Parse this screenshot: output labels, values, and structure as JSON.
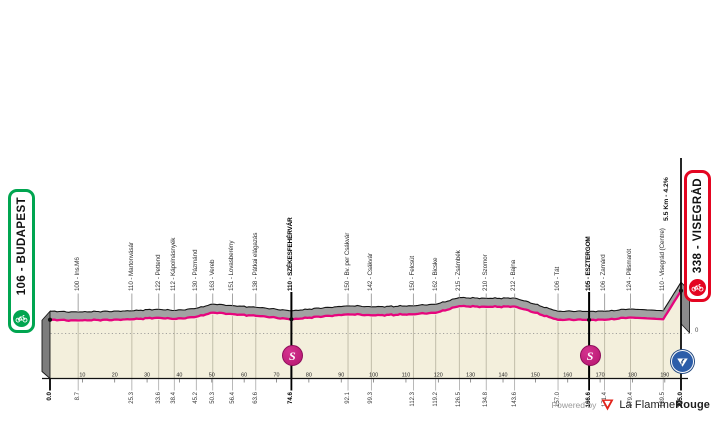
{
  "start_badge": {
    "label": "106 - BUDAPEST"
  },
  "finish_badge": {
    "label": "338 - VISEGRÁD"
  },
  "climb_annotation": "5.5 Km - 4.2%",
  "axis": {
    "zero_label": "0",
    "tick_labels": [
      "10",
      "20",
      "30",
      "40",
      "50",
      "60",
      "70",
      "80",
      "90",
      "100",
      "110",
      "120",
      "130",
      "140",
      "150",
      "160",
      "170",
      "180",
      "190"
    ]
  },
  "markers": {
    "sprint_symbol": "S"
  },
  "footer": {
    "powered_by": "Powered by",
    "brand_regular": "La Flamme",
    "brand_bold": "Rouge"
  },
  "colors": {
    "route_pink": "#e6057d",
    "start_green": "#00a550",
    "finish_red": "#e40521",
    "sprint_magenta": "#b5156f",
    "finish_marker_blue": "#2c5da9",
    "profile_gray": "#a2a2a2",
    "wall_gray": "#7d7d7d",
    "plot_beige": "#f3efdc",
    "grid_tan": "#bcb8a4"
  },
  "chart_data": {
    "type": "area",
    "title": "",
    "x_unit": "km",
    "y_unit": "m",
    "x_range": [
      0,
      195
    ],
    "y_range": [
      0,
      338
    ],
    "sprints_km": [
      74.6,
      166.6
    ],
    "finish_km": 195.0,
    "waypoints": [
      {
        "km": 0.0,
        "dist": "0.0",
        "elev": 106,
        "label": "",
        "bold": true,
        "type": "start"
      },
      {
        "km": 8.7,
        "dist": "8.7",
        "elev": 100,
        "label": "100 - Ins.M6",
        "bold": false,
        "type": "pass"
      },
      {
        "km": 25.3,
        "dist": "25.3",
        "elev": 110,
        "label": "110 - Martonvásár",
        "bold": false,
        "type": "pass"
      },
      {
        "km": 33.6,
        "dist": "33.6",
        "elev": 122,
        "label": "122 - Pettend",
        "bold": false,
        "type": "pass"
      },
      {
        "km": 38.4,
        "dist": "38.4",
        "elev": 112,
        "label": "112 - Kápolnásnyék",
        "bold": false,
        "type": "pass"
      },
      {
        "km": 45.2,
        "dist": "45.2",
        "elev": 130,
        "label": "130 - Pázmánd",
        "bold": false,
        "type": "pass"
      },
      {
        "km": 50.3,
        "dist": "50.3",
        "elev": 163,
        "label": "163 - Vereb",
        "bold": false,
        "type": "pass"
      },
      {
        "km": 56.4,
        "dist": "56.4",
        "elev": 151,
        "label": "151 - Lovasberény",
        "bold": false,
        "type": "pass"
      },
      {
        "km": 63.6,
        "dist": "63.6",
        "elev": 138,
        "label": "138 - Pátkai elágazás",
        "bold": false,
        "type": "pass"
      },
      {
        "km": 74.6,
        "dist": "74.6",
        "elev": 110,
        "label": "110 - SZÉKESFEHÉRVÁR",
        "bold": true,
        "type": "sprint"
      },
      {
        "km": 92.1,
        "dist": "92.1",
        "elev": 150,
        "label": "150 - Bv. per Csákvár",
        "bold": false,
        "type": "pass"
      },
      {
        "km": 99.3,
        "dist": "99.3",
        "elev": 142,
        "label": "142 - Csákvár",
        "bold": false,
        "type": "pass"
      },
      {
        "km": 112.3,
        "dist": "112.3",
        "elev": 150,
        "label": "150 - Felcsút",
        "bold": false,
        "type": "pass"
      },
      {
        "km": 119.2,
        "dist": "119.2",
        "elev": 162,
        "label": "162 - Bicske",
        "bold": false,
        "type": "pass"
      },
      {
        "km": 126.5,
        "dist": "126.5",
        "elev": 215,
        "label": "215 - Zsámbék",
        "bold": false,
        "type": "pass"
      },
      {
        "km": 134.8,
        "dist": "134.8",
        "elev": 210,
        "label": "210 - Szomor",
        "bold": false,
        "type": "pass"
      },
      {
        "km": 143.6,
        "dist": "143.6",
        "elev": 212,
        "label": "212 - Bajna",
        "bold": false,
        "type": "pass"
      },
      {
        "km": 157.0,
        "dist": "157.0",
        "elev": 106,
        "label": "106 - Tát",
        "bold": false,
        "type": "pass"
      },
      {
        "km": 166.6,
        "dist": "166.6",
        "elev": 105,
        "label": "105 - ESZTERGOM",
        "bold": true,
        "type": "sprint"
      },
      {
        "km": 171.4,
        "dist": "171.4",
        "elev": 106,
        "label": "106 - Zamárd",
        "bold": false,
        "type": "pass"
      },
      {
        "km": 179.4,
        "dist": "179.4",
        "elev": 124,
        "label": "124 - Pilismarót",
        "bold": false,
        "type": "pass"
      },
      {
        "km": 189.5,
        "dist": "189.5",
        "elev": 110,
        "label": "110 - Visegrád (Centre)",
        "bold": false,
        "type": "pass"
      },
      {
        "km": 195.0,
        "dist": "195.0",
        "elev": 338,
        "label": "",
        "bold": true,
        "type": "finish"
      }
    ]
  }
}
